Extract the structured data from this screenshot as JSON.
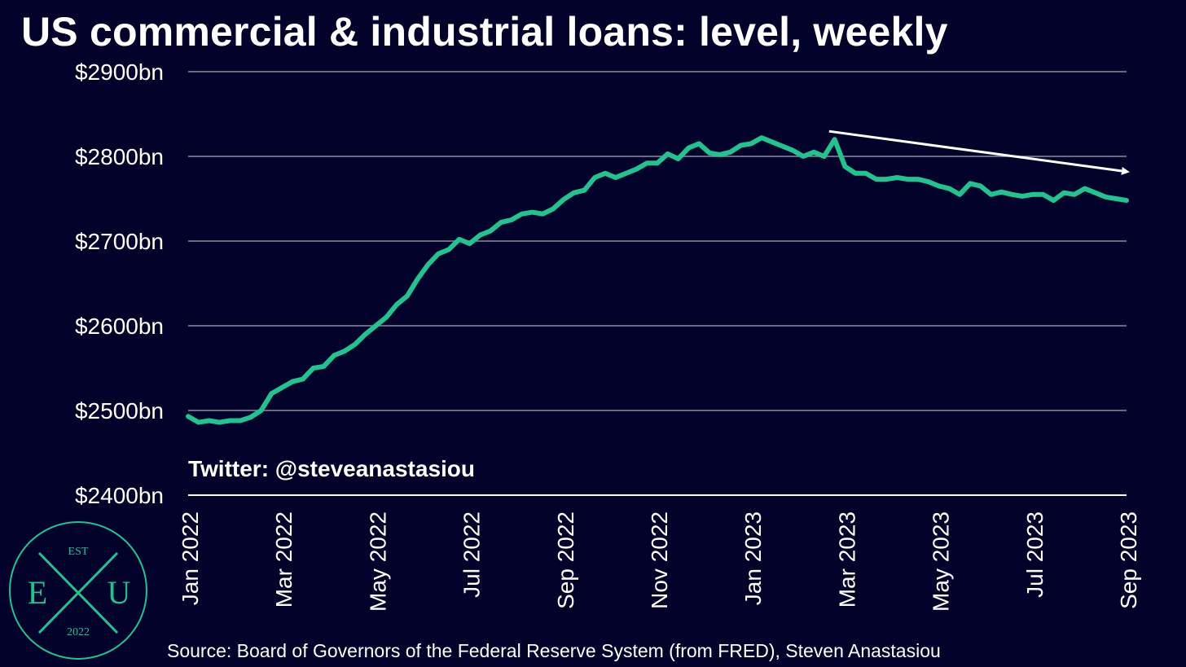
{
  "title": "US commercial & industrial loans: level, weekly",
  "credit": "Twitter: @steveanastasiou",
  "source": "Source: Board of Governors of the Federal Reserve System (from FRED), Steven Anastasiou",
  "logo": {
    "top": "EST",
    "left": "E",
    "right": "U",
    "bottom": "2022"
  },
  "colors": {
    "background": "#02022a",
    "line": "#1fc48f",
    "grid": "#8a8aa0",
    "text": "#ffffff"
  },
  "chart_data": {
    "type": "line",
    "title": "US commercial & industrial loans: level, weekly",
    "ylim": [
      2400,
      2900
    ],
    "yticks": [
      2400,
      2500,
      2600,
      2700,
      2800,
      2900
    ],
    "ytick_labels": [
      "$2400bn",
      "$2500bn",
      "$2600bn",
      "$2700bn",
      "$2800bn",
      "$2900bn"
    ],
    "xlim": [
      "2022-01-05",
      "2023-09-27"
    ],
    "xtick_labels": [
      "Jan 2022",
      "Mar 2022",
      "May 2022",
      "Jul 2022",
      "Sep 2022",
      "Nov 2022",
      "Jan 2023",
      "Mar 2023",
      "May 2023",
      "Jul 2023",
      "Sep 2023"
    ],
    "grid": true,
    "annotations": [
      {
        "type": "arrow",
        "from": [
          "2023-03-08",
          2820
        ],
        "to": [
          "2023-09-27",
          2782
        ]
      }
    ],
    "series": [
      {
        "x": [
          "2022-01-05",
          "2022-01-12",
          "2022-01-19",
          "2022-01-26",
          "2022-02-02",
          "2022-02-09",
          "2022-02-16",
          "2022-02-23",
          "2022-03-02",
          "2022-03-09",
          "2022-03-16",
          "2022-03-23",
          "2022-03-30",
          "2022-04-06",
          "2022-04-13",
          "2022-04-20",
          "2022-04-27",
          "2022-05-04",
          "2022-05-11",
          "2022-05-18",
          "2022-05-25",
          "2022-06-01",
          "2022-06-08",
          "2022-06-15",
          "2022-06-22",
          "2022-06-29",
          "2022-07-06",
          "2022-07-13",
          "2022-07-20",
          "2022-07-27",
          "2022-08-03",
          "2022-08-10",
          "2022-08-17",
          "2022-08-24",
          "2022-08-31",
          "2022-09-07",
          "2022-09-14",
          "2022-09-21",
          "2022-09-28",
          "2022-10-05",
          "2022-10-12",
          "2022-10-19",
          "2022-10-26",
          "2022-11-02",
          "2022-11-09",
          "2022-11-16",
          "2022-11-23",
          "2022-11-30",
          "2022-12-07",
          "2022-12-14",
          "2022-12-21",
          "2022-12-28",
          "2023-01-04",
          "2023-01-11",
          "2023-01-18",
          "2023-01-25",
          "2023-02-01",
          "2023-02-08",
          "2023-02-15",
          "2023-02-22",
          "2023-03-01",
          "2023-03-08",
          "2023-03-15",
          "2023-03-22",
          "2023-03-29",
          "2023-04-05",
          "2023-04-12",
          "2023-04-19",
          "2023-04-26",
          "2023-05-03",
          "2023-05-10",
          "2023-05-17",
          "2023-05-24",
          "2023-05-31",
          "2023-06-07",
          "2023-06-14",
          "2023-06-21",
          "2023-06-28",
          "2023-07-05",
          "2023-07-12",
          "2023-07-19",
          "2023-07-26",
          "2023-08-02",
          "2023-08-09",
          "2023-08-16",
          "2023-08-23",
          "2023-08-30",
          "2023-09-06",
          "2023-09-13",
          "2023-09-20",
          "2023-09-27"
        ],
        "values": [
          2493,
          2486,
          2488,
          2486,
          2488,
          2488,
          2492,
          2500,
          2520,
          2527,
          2534,
          2537,
          2550,
          2552,
          2565,
          2570,
          2578,
          2590,
          2600,
          2610,
          2625,
          2635,
          2655,
          2672,
          2685,
          2690,
          2702,
          2697,
          2707,
          2712,
          2722,
          2725,
          2732,
          2734,
          2732,
          2738,
          2749,
          2757,
          2760,
          2775,
          2780,
          2775,
          2780,
          2785,
          2792,
          2792,
          2803,
          2797,
          2810,
          2815,
          2804,
          2802,
          2805,
          2813,
          2815,
          2822,
          2817,
          2812,
          2807,
          2800,
          2805,
          2800,
          2820,
          2788,
          2780,
          2780,
          2773,
          2773,
          2775,
          2773,
          2773,
          2770,
          2765,
          2762,
          2755,
          2768,
          2765,
          2755,
          2758,
          2755,
          2753,
          2755,
          2755,
          2748,
          2757,
          2755,
          2762,
          2757,
          2752,
          2750,
          2748
        ]
      }
    ]
  }
}
